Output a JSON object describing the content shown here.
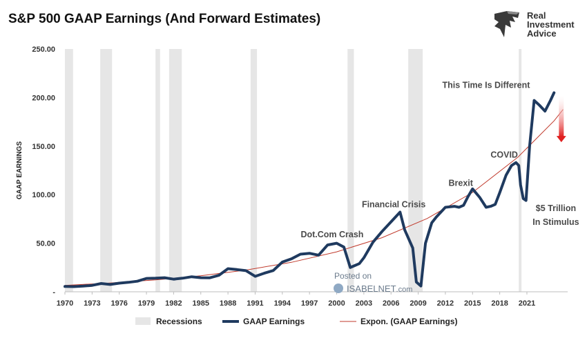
{
  "logo": {
    "line1": "Real",
    "line2": "Investment",
    "line3": "Advice"
  },
  "watermark": {
    "line1": "Posted on",
    "line2": "ISABELNET",
    "line3": ".com"
  },
  "colors": {
    "earnings": "#1f3a5f",
    "trend": "#c0392b",
    "recession": "#e6e6e6",
    "arrow": "#e02020"
  },
  "chart_data": {
    "type": "line",
    "title": "S&P 500 GAAP Earnings (And Forward Estimates)",
    "xlabel": "",
    "ylabel": "GAAP EARNINGS",
    "xlim": [
      1970,
      2025.5
    ],
    "ylim": [
      0,
      250
    ],
    "y_ticks": [
      0,
      50,
      100,
      150,
      200,
      250
    ],
    "y_tick_labels": [
      "-",
      "50.00",
      "100.00",
      "150.00",
      "200.00",
      "250.00"
    ],
    "x_ticks": [
      1970,
      1973,
      1976,
      1979,
      1982,
      1985,
      1988,
      1991,
      1994,
      1997,
      2000,
      2003,
      2006,
      2009,
      2012,
      2015,
      2018,
      2021
    ],
    "x_tick_labels": [
      "1970",
      "1973",
      "1976",
      "1979",
      "1982",
      "1985",
      "1988",
      "1991",
      "1994",
      "1997",
      "2000",
      "2003",
      "2006",
      "2009",
      "2012",
      "2015",
      "2018",
      "2021"
    ],
    "recessions": [
      [
        1970.0,
        1970.9
      ],
      [
        1973.9,
        1975.2
      ],
      [
        1980.0,
        1980.5
      ],
      [
        1981.5,
        1982.9
      ],
      [
        1990.5,
        1991.2
      ],
      [
        2001.2,
        2001.9
      ],
      [
        2007.9,
        2009.5
      ],
      [
        2020.1,
        2020.4
      ]
    ],
    "series": [
      {
        "name": "GAAP Earnings",
        "points": [
          [
            1970,
            5.5
          ],
          [
            1971,
            5.3
          ],
          [
            1972,
            5.8
          ],
          [
            1973,
            6.6
          ],
          [
            1974,
            8.5
          ],
          [
            1975,
            7.5
          ],
          [
            1976,
            8.9
          ],
          [
            1977,
            9.7
          ],
          [
            1978,
            10.9
          ],
          [
            1979,
            13.8
          ],
          [
            1980,
            14.0
          ],
          [
            1981,
            14.5
          ],
          [
            1982,
            13.0
          ],
          [
            1983,
            14.0
          ],
          [
            1984,
            15.5
          ],
          [
            1985,
            14.5
          ],
          [
            1986,
            14.4
          ],
          [
            1987,
            17.0
          ],
          [
            1988,
            23.8
          ],
          [
            1989,
            22.9
          ],
          [
            1990,
            21.7
          ],
          [
            1991,
            15.9
          ],
          [
            1992,
            19.1
          ],
          [
            1993,
            21.9
          ],
          [
            1994,
            30.6
          ],
          [
            1995,
            33.9
          ],
          [
            1996,
            38.7
          ],
          [
            1997,
            39.6
          ],
          [
            1998,
            37.7
          ],
          [
            1999,
            48.2
          ],
          [
            2000,
            50.0
          ],
          [
            2000.8,
            46.0
          ],
          [
            2001.5,
            25.0
          ],
          [
            2002,
            27.0
          ],
          [
            2002.5,
            29.0
          ],
          [
            2003,
            35.0
          ],
          [
            2004,
            51.0
          ],
          [
            2005,
            62.0
          ],
          [
            2006,
            72.0
          ],
          [
            2007,
            82.0
          ],
          [
            2007.5,
            64.0
          ],
          [
            2008.4,
            45.0
          ],
          [
            2008.8,
            10.0
          ],
          [
            2009.3,
            6.0
          ],
          [
            2009.8,
            50.0
          ],
          [
            2010.5,
            71.0
          ],
          [
            2011,
            77.0
          ],
          [
            2012,
            87.0
          ],
          [
            2013,
            88.0
          ],
          [
            2013.5,
            87.0
          ],
          [
            2014,
            89.0
          ],
          [
            2014.5,
            98.0
          ],
          [
            2015,
            106.0
          ],
          [
            2015.8,
            97.0
          ],
          [
            2016.5,
            87.0
          ],
          [
            2017,
            88.0
          ],
          [
            2017.5,
            90.0
          ],
          [
            2018,
            102.0
          ],
          [
            2018.7,
            120.0
          ],
          [
            2019.3,
            130.0
          ],
          [
            2019.8,
            133.0
          ],
          [
            2020.1,
            130.0
          ],
          [
            2020.3,
            110.0
          ],
          [
            2020.6,
            96.0
          ],
          [
            2020.9,
            94.0
          ],
          [
            2021.3,
            150.0
          ],
          [
            2021.8,
            197.0
          ],
          [
            2022.4,
            192.0
          ],
          [
            2023,
            186.0
          ],
          [
            2023.6,
            197.0
          ],
          [
            2024,
            205.0
          ]
        ]
      },
      {
        "name": "Expon. (GAAP Earnings)",
        "points": [
          [
            1970,
            6.6
          ],
          [
            1975,
            9.0
          ],
          [
            1980,
            12.2
          ],
          [
            1985,
            16.5
          ],
          [
            1990,
            22.4
          ],
          [
            1995,
            30.3
          ],
          [
            2000,
            41.1
          ],
          [
            2005,
            55.7
          ],
          [
            2010,
            75.5
          ],
          [
            2015,
            102.3
          ],
          [
            2020,
            138.6
          ],
          [
            2024,
            176.0
          ],
          [
            2025,
            187.7
          ]
        ]
      }
    ],
    "legend": [
      {
        "label": "Recessions",
        "kind": "band"
      },
      {
        "label": "GAAP Earnings",
        "kind": "thick"
      },
      {
        "label": "Expon. (GAAP Earnings)",
        "kind": "thin"
      }
    ],
    "legend_position": "bottom",
    "annotations": [
      {
        "text": "Dot.Com Crash",
        "x": 1999.5,
        "y": 56
      },
      {
        "text": "Financial Crisis",
        "x": 2006.3,
        "y": 87
      },
      {
        "text": "Brexit",
        "x": 2013.7,
        "y": 109
      },
      {
        "text": "COVID",
        "x": 2018.5,
        "y": 138
      },
      {
        "text": "$5 Trillion",
        "x": 2024.2,
        "y": 83
      },
      {
        "text": "In Stimulus",
        "x": 2024.2,
        "y": 69
      },
      {
        "text": "This Time Is Different",
        "x": 2016.5,
        "y": 210
      }
    ],
    "arrow": {
      "x": 2024.8,
      "y_from": 202,
      "y_to": 154
    }
  }
}
